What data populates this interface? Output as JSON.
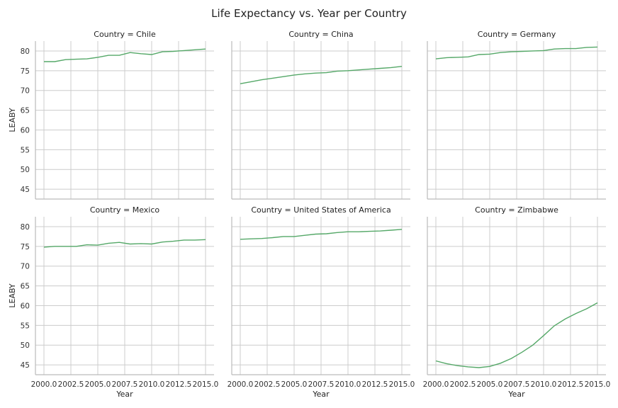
{
  "title": "Life Expectancy vs. Year per Country",
  "chart_data": {
    "type": "line",
    "title": "Life Expectancy vs. Year per Country",
    "xlabel": "Year",
    "ylabel": "LEABY",
    "xlim": [
      2000,
      2015
    ],
    "ylim": [
      42.5,
      82.5
    ],
    "xticks": [
      "2000.0",
      "2002.5",
      "2005.0",
      "2007.5",
      "2010.0",
      "2012.5",
      "2015.0"
    ],
    "yticks": [
      "45",
      "50",
      "55",
      "60",
      "65",
      "70",
      "75",
      "80"
    ],
    "grid": true,
    "line_color": "#55a868",
    "x": [
      2000,
      2001,
      2002,
      2003,
      2004,
      2005,
      2006,
      2007,
      2008,
      2009,
      2010,
      2011,
      2012,
      2013,
      2014,
      2015
    ],
    "panels": [
      {
        "title": "Country = Chile",
        "values": [
          77.3,
          77.3,
          77.8,
          77.9,
          78.0,
          78.4,
          78.9,
          78.9,
          79.6,
          79.3,
          79.1,
          79.8,
          79.9,
          80.1,
          80.3,
          80.5
        ]
      },
      {
        "title": "Country = China",
        "values": [
          71.7,
          72.2,
          72.7,
          73.1,
          73.5,
          73.9,
          74.2,
          74.4,
          74.5,
          74.9,
          75.0,
          75.2,
          75.4,
          75.6,
          75.8,
          76.1
        ]
      },
      {
        "title": "Country = Germany",
        "values": [
          78.0,
          78.3,
          78.4,
          78.5,
          79.1,
          79.2,
          79.6,
          79.8,
          79.9,
          80.0,
          80.1,
          80.5,
          80.6,
          80.6,
          80.9,
          81.0
        ]
      },
      {
        "title": "Country = Mexico",
        "values": [
          74.8,
          75.0,
          75.0,
          75.0,
          75.4,
          75.3,
          75.8,
          76.0,
          75.6,
          75.7,
          75.6,
          76.1,
          76.3,
          76.6,
          76.6,
          76.7
        ]
      },
      {
        "title": "Country = United States of America",
        "values": [
          76.8,
          76.9,
          77.0,
          77.2,
          77.5,
          77.5,
          77.8,
          78.1,
          78.2,
          78.5,
          78.7,
          78.7,
          78.8,
          78.9,
          79.1,
          79.3
        ]
      },
      {
        "title": "Country = Zimbabwe",
        "values": [
          46.0,
          45.3,
          44.8,
          44.5,
          44.3,
          44.6,
          45.4,
          46.6,
          48.2,
          50.0,
          52.4,
          54.9,
          56.6,
          58.0,
          59.2,
          60.7
        ]
      }
    ]
  }
}
